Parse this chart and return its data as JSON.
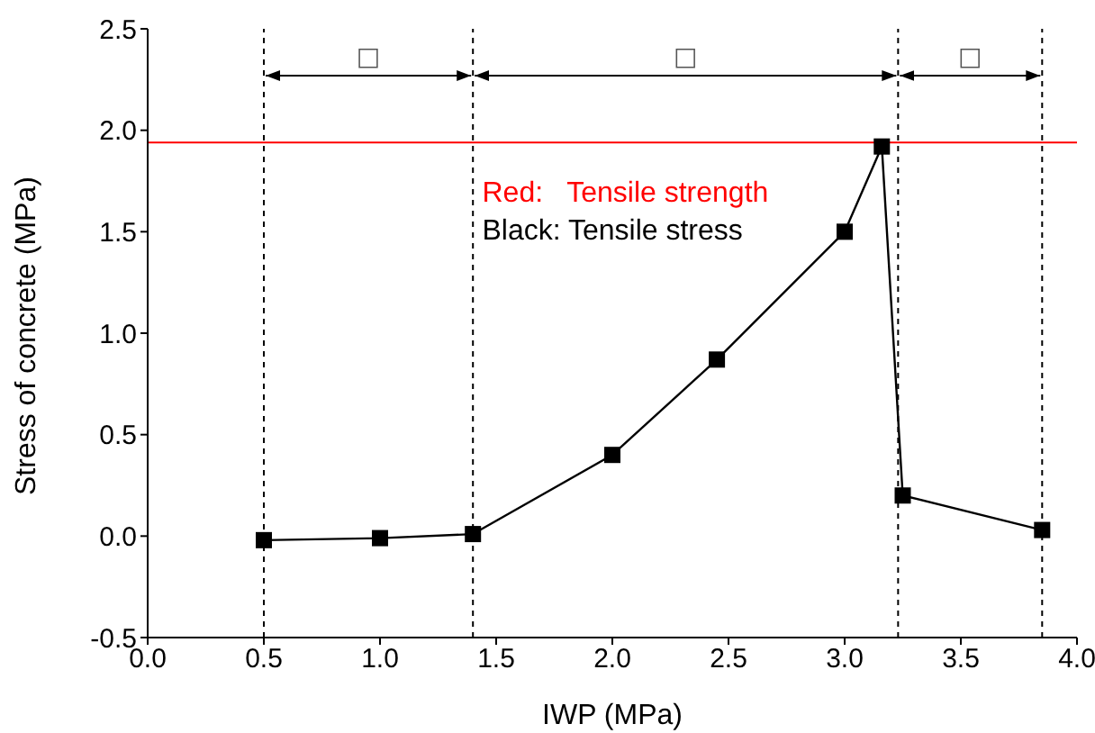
{
  "chart_data": {
    "type": "line",
    "xlabel": "IWP (MPa)",
    "ylabel": "Stress of concrete (MPa)",
    "xlim": [
      0,
      4
    ],
    "xticks": [
      {
        "value": 0,
        "label": "0.0"
      },
      {
        "value": 0.5,
        "label": "0.5"
      },
      {
        "value": 1,
        "label": "1.0"
      },
      {
        "value": 1.5,
        "label": "1.5"
      },
      {
        "value": 2,
        "label": "2.0"
      },
      {
        "value": 2.5,
        "label": "2.5"
      },
      {
        "value": 3,
        "label": "3.0"
      },
      {
        "value": 3.5,
        "label": "3.5"
      },
      {
        "value": 4,
        "label": "4.0"
      }
    ],
    "ylim": [
      -0.5,
      2.5
    ],
    "yticks": [
      {
        "value": -0.5,
        "label": "-0.5"
      },
      {
        "value": 0,
        "label": "0.0"
      },
      {
        "value": 0.5,
        "label": "0.5"
      },
      {
        "value": 1,
        "label": "1.0"
      },
      {
        "value": 1.5,
        "label": "1.5"
      },
      {
        "value": 2,
        "label": "2.0"
      },
      {
        "value": 2.5,
        "label": "2.5"
      }
    ],
    "x": [
      0.5,
      1.0,
      1.4,
      2.0,
      2.45,
      3.0,
      3.16,
      3.25,
      3.85
    ],
    "series": [
      {
        "color": "#000000",
        "values": [
          -0.02,
          -0.01,
          0.01,
          0.4,
          0.87,
          1.5,
          1.92,
          0.2,
          0.03
        ]
      }
    ],
    "marker": "square",
    "line_style": "solid",
    "ref_lines": [
      {
        "axis": "y",
        "value": 1.94,
        "color": "#ff0000",
        "line_style": "solid"
      },
      {
        "axis": "x",
        "value": 0.5,
        "color": "#000000",
        "line_style": "dashed"
      },
      {
        "axis": "x",
        "value": 1.4,
        "color": "#000000",
        "line_style": "dashed"
      },
      {
        "axis": "x",
        "value": 3.23,
        "color": "#000000",
        "line_style": "dashed"
      },
      {
        "axis": "x",
        "value": 3.85,
        "color": "#000000",
        "line_style": "dashed"
      }
    ],
    "annotations": [
      "Red:   Tensile strength",
      "Black: Tensile stress",
      "□",
      "□",
      "□"
    ]
  }
}
